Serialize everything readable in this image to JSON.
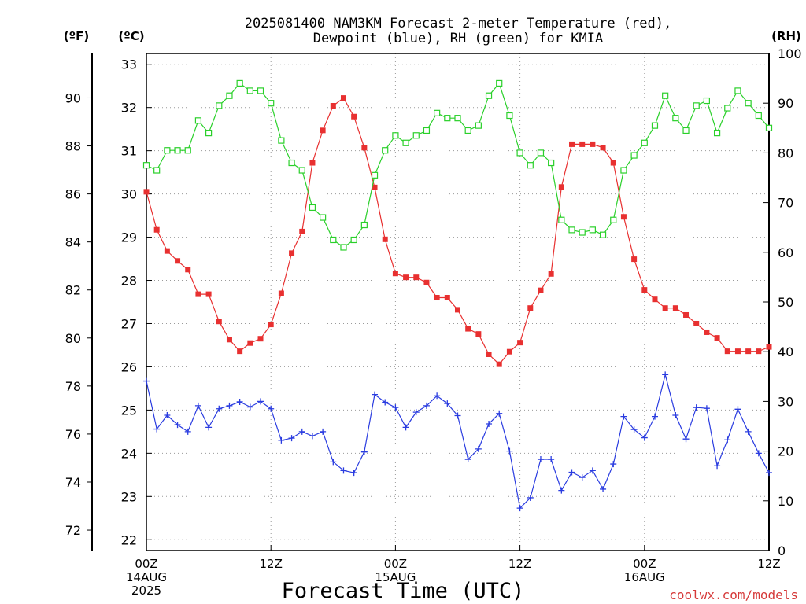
{
  "chart_data": {
    "type": "line",
    "title_lines": [
      "2025081400 NAM3KM Forecast 2-meter Temperature (red),",
      "Dewpoint (blue), RH (green) for KMIA"
    ],
    "xlabel": "Forecast Time (UTC)",
    "unit_labels": {
      "fahrenheit": "(ºF)",
      "celsius": "(ºC)",
      "rh": "(RH)"
    },
    "credit": "coolwx.com/models",
    "x_ticks": [
      {
        "hour": 0,
        "lines": [
          "00Z",
          "14AUG",
          "2025"
        ]
      },
      {
        "hour": 12,
        "lines": [
          "12Z"
        ]
      },
      {
        "hour": 24,
        "lines": [
          "00Z",
          "15AUG"
        ]
      },
      {
        "hour": 36,
        "lines": [
          "12Z"
        ]
      },
      {
        "hour": 48,
        "lines": [
          "00Z",
          "16AUG"
        ]
      },
      {
        "hour": 60,
        "lines": [
          "12Z"
        ]
      }
    ],
    "x_range": [
      0,
      60
    ],
    "celsius_range": [
      21.75,
      33.25
    ],
    "celsius_ticks": [
      22,
      23,
      24,
      25,
      26,
      27,
      28,
      29,
      30,
      31,
      32,
      33
    ],
    "fahrenheit_ticks": [
      72,
      74,
      76,
      78,
      80,
      82,
      84,
      86,
      88,
      90
    ],
    "rh_range": [
      0,
      100
    ],
    "rh_ticks": [
      0,
      10,
      20,
      30,
      40,
      50,
      60,
      70,
      80,
      90,
      100
    ],
    "grid": true,
    "forecast_hours": [
      0,
      1,
      2,
      3,
      4,
      5,
      6,
      7,
      8,
      9,
      10,
      11,
      12,
      13,
      14,
      15,
      16,
      17,
      18,
      19,
      20,
      21,
      22,
      23,
      24,
      25,
      26,
      27,
      28,
      29,
      30,
      31,
      32,
      33,
      34,
      35,
      36,
      37,
      38,
      39,
      40,
      41,
      42,
      43,
      44,
      45,
      46,
      47,
      48,
      49,
      50,
      51,
      52,
      53,
      54,
      55,
      56,
      57,
      58,
      59,
      60
    ],
    "series": [
      {
        "key": "temperature",
        "axis": "celsius",
        "color": "#e83030",
        "marker": "filled-square",
        "values": [
          30.05,
          29.17,
          28.68,
          28.45,
          28.25,
          27.68,
          27.68,
          27.05,
          26.63,
          26.36,
          26.55,
          26.65,
          26.98,
          27.7,
          28.63,
          29.13,
          30.72,
          31.47,
          32.04,
          32.22,
          31.79,
          31.07,
          30.15,
          28.95,
          28.16,
          28.07,
          28.07,
          27.95,
          27.6,
          27.6,
          27.32,
          26.88,
          26.76,
          26.29,
          26.06,
          26.35,
          26.56,
          27.36,
          27.77,
          28.15,
          30.16,
          31.15,
          31.15,
          31.15,
          31.07,
          30.72,
          29.47,
          28.49,
          27.78,
          27.56,
          27.36,
          27.36,
          27.2,
          27.0,
          26.8,
          26.67,
          26.36,
          26.36,
          26.36,
          26.36,
          26.46
        ]
      },
      {
        "key": "dewpoint",
        "axis": "celsius",
        "color": "#2a3ce0",
        "marker": "plus",
        "values": [
          25.67,
          24.56,
          24.88,
          24.66,
          24.5,
          25.1,
          24.6,
          25.03,
          25.1,
          25.19,
          25.07,
          25.2,
          25.03,
          24.3,
          24.35,
          24.5,
          24.4,
          24.5,
          23.8,
          23.6,
          23.55,
          24.03,
          25.36,
          25.18,
          25.06,
          24.6,
          24.95,
          25.1,
          25.33,
          25.15,
          24.87,
          23.86,
          24.1,
          24.68,
          24.92,
          24.05,
          22.73,
          22.97,
          23.86,
          23.86,
          23.14,
          23.56,
          23.44,
          23.6,
          23.17,
          23.75,
          24.85,
          24.55,
          24.36,
          24.85,
          25.82,
          24.88,
          24.33,
          25.06,
          25.04,
          23.71,
          24.31,
          25.02,
          24.5,
          24.0,
          23.55
        ]
      },
      {
        "key": "rh",
        "axis": "rh",
        "color": "#2ad02a",
        "marker": "open-square",
        "values": [
          77.5,
          76.5,
          80.5,
          80.5,
          80.5,
          86.5,
          84.0,
          89.5,
          91.5,
          94.0,
          92.5,
          92.5,
          90.0,
          82.5,
          78.0,
          76.5,
          69.0,
          67.0,
          62.5,
          61.0,
          62.5,
          65.5,
          75.5,
          80.5,
          83.5,
          82.0,
          83.5,
          84.5,
          88.0,
          87.0,
          87.0,
          84.5,
          85.5,
          91.5,
          94.0,
          87.5,
          80.0,
          77.5,
          80.0,
          78.0,
          66.5,
          64.5,
          64.0,
          64.5,
          63.5,
          66.5,
          76.5,
          79.5,
          82.0,
          85.5,
          91.5,
          87.0,
          84.5,
          89.5,
          90.5,
          84.0,
          89.0,
          92.5,
          90.0,
          87.5,
          85.0
        ]
      }
    ]
  }
}
